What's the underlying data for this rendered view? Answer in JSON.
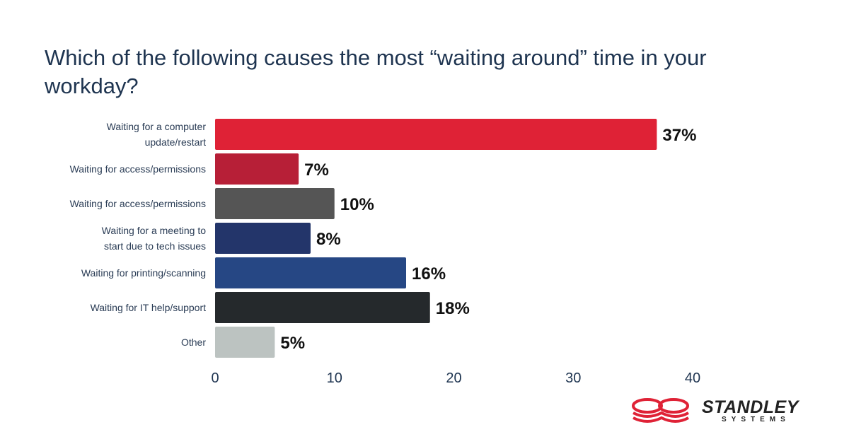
{
  "chart_data": {
    "type": "bar",
    "orientation": "horizontal",
    "title": "Which of the following causes the most “waiting around” time in your workday?",
    "categories": [
      [
        "Waiting for a computer",
        "update/restart"
      ],
      [
        "Waiting for access/permissions"
      ],
      [
        "Waiting for access/permissions"
      ],
      [
        "Waiting for a meeting to",
        "start due to tech issues"
      ],
      [
        "Waiting for printing/scanning"
      ],
      [
        "Waiting for IT help/support"
      ],
      [
        "Other"
      ]
    ],
    "values": [
      37,
      7,
      10,
      8,
      16,
      18,
      5
    ],
    "value_labels": [
      "37%",
      "7%",
      "10%",
      "8%",
      "16%",
      "18%",
      "5%"
    ],
    "colors": [
      "#df2236",
      "#b71f37",
      "#555555",
      "#23356a",
      "#264784",
      "#25292c",
      "#bcc3c1"
    ],
    "xlim": [
      0,
      40
    ],
    "xticks": [
      "0",
      "10",
      "20",
      "30",
      "40"
    ],
    "grid": false
  },
  "logo": {
    "name": "STANDLEY",
    "sub": "SYSTEMS"
  }
}
